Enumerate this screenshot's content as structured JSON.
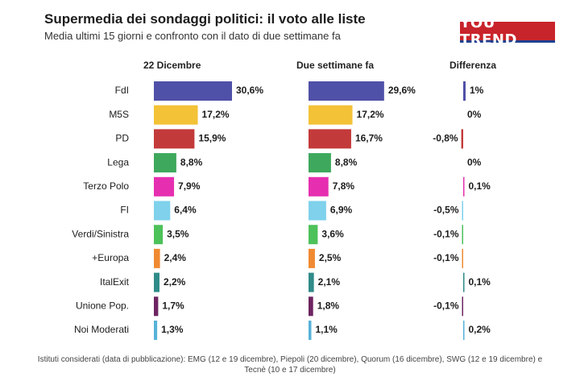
{
  "header": {
    "title": "Supermedia dei sondaggi politici: il voto alle liste",
    "subtitle": "Media ultimi 15 giorni e confronto con il dato di due settimane fa",
    "logo_text": "YOU TREND"
  },
  "columns": {
    "current": "22 Dicembre",
    "previous": "Due settimane fa",
    "diff": "Differenza"
  },
  "footer": "Istituti considerati (data di pubblicazione): EMG (12 e 19 dicembre), Piepoli (20 dicembre), Quorum (16 dicembre), SWG (12 e 19 dicembre) e Tecnè (10 e 17 dicembre)",
  "chart_data": {
    "type": "bar",
    "categories": [
      "FdI",
      "M5S",
      "PD",
      "Lega",
      "Terzo Polo",
      "FI",
      "Verdi/Sinistra",
      "+Europa",
      "ItalExit",
      "Unione Pop.",
      "Noi Moderati"
    ],
    "series": [
      {
        "name": "22 Dicembre",
        "values": [
          30.6,
          17.2,
          15.9,
          8.8,
          7.9,
          6.4,
          3.5,
          2.4,
          2.2,
          1.7,
          1.3
        ],
        "labels": [
          "30,6%",
          "17,2%",
          "15,9%",
          "8,8%",
          "7,9%",
          "6,4%",
          "3,5%",
          "2,4%",
          "2,2%",
          "1,7%",
          "1,3%"
        ]
      },
      {
        "name": "Due settimane fa",
        "values": [
          29.6,
          17.2,
          16.7,
          8.8,
          7.8,
          6.9,
          3.6,
          2.5,
          2.1,
          1.8,
          1.1
        ],
        "labels": [
          "29,6%",
          "17,2%",
          "16,7%",
          "8,8%",
          "7,8%",
          "6,9%",
          "3,6%",
          "2,5%",
          "2,1%",
          "1,8%",
          "1,1%"
        ]
      },
      {
        "name": "Differenza",
        "values": [
          1,
          0,
          -0.8,
          0,
          0.1,
          -0.5,
          -0.1,
          -0.1,
          0.1,
          -0.1,
          0.2
        ],
        "labels": [
          "1%",
          "0%",
          "-0,8%",
          "0%",
          "0,1%",
          "-0,5%",
          "-0,1%",
          "-0,1%",
          "0,1%",
          "-0,1%",
          "0,2%"
        ]
      }
    ],
    "colors": [
      "#4f50a8",
      "#f3c236",
      "#c33a3a",
      "#3ea85c",
      "#e52fb0",
      "#7fd1ec",
      "#4dc15a",
      "#f08a32",
      "#2f8b89",
      "#6d2460",
      "#57b2d8"
    ]
  }
}
